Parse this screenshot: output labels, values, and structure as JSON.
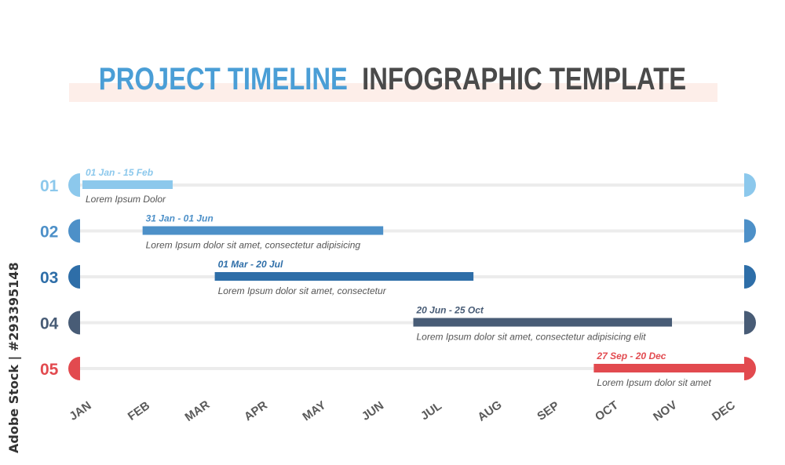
{
  "header": {
    "title_part1": "PROJECT TIMELINE",
    "title_part2": "INFOGRAPHIC TEMPLATE"
  },
  "watermark": "Adobe Stock | #293395148",
  "chart_data": {
    "type": "gantt",
    "months": [
      "JAN",
      "FEB",
      "MAR",
      "APR",
      "MAY",
      "JUN",
      "JUL",
      "AUG",
      "SEP",
      "OCT",
      "NOV",
      "DEC"
    ],
    "tasks": [
      {
        "number": "01",
        "date_label": "01 Jan - 15 Feb",
        "description": "Lorem Ipsum Dolor",
        "start_month": 0.0,
        "end_month": 1.5,
        "color": "#8cc8ec"
      },
      {
        "number": "02",
        "date_label": "31 Jan - 01 Jun",
        "description": "Lorem Ipsum dolor sit amet, consectetur adipisicing",
        "start_month": 1.0,
        "end_month": 5.0,
        "color": "#4d90c8"
      },
      {
        "number": "03",
        "date_label": "01 Mar - 20 Jul",
        "description": "Lorem Ipsum dolor sit amet, consectetur",
        "start_month": 2.2,
        "end_month": 6.5,
        "color": "#2e6ea8"
      },
      {
        "number": "04",
        "date_label": "20 Jun - 25 Oct",
        "description": "Lorem Ipsum dolor sit amet, consectetur adipisicing elit",
        "start_month": 5.5,
        "end_month": 9.8,
        "color": "#485c76"
      },
      {
        "number": "05",
        "date_label": "27 Sep - 20 Dec",
        "description": "Lorem Ipsum dolor sit amet",
        "start_month": 8.5,
        "end_month": 11.0,
        "color": "#e24a4f"
      }
    ]
  }
}
